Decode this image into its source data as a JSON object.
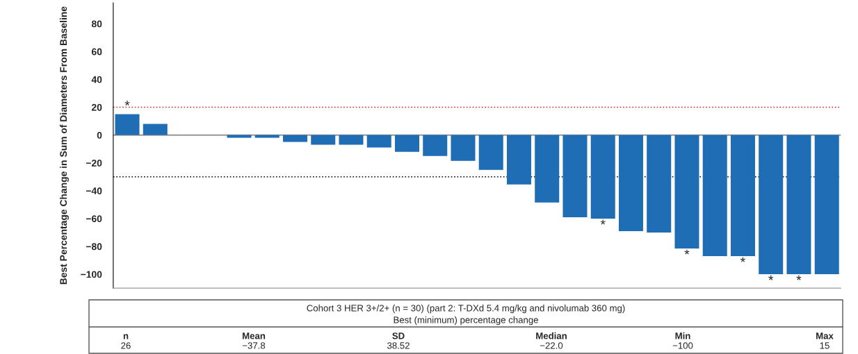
{
  "chart_data": {
    "type": "bar",
    "ylabel": "Best Percentage Change in Sum of Diameters From Baseline",
    "categories": [
      null,
      null,
      null,
      null,
      null,
      null,
      null,
      null,
      null,
      null,
      null,
      null,
      null,
      null,
      null,
      null,
      null,
      null,
      null,
      null,
      null,
      null,
      null,
      null,
      null,
      null
    ],
    "values": [
      15,
      8,
      null,
      null,
      -2,
      -2,
      -5,
      -7,
      -7,
      -9,
      -12,
      -15,
      -18.5,
      -25,
      -35.5,
      -48.5,
      -59,
      -60,
      -69,
      -70,
      -81.5,
      -87,
      -87,
      -100,
      -100,
      -100
    ],
    "value_labels": [
      "*",
      null,
      null,
      null,
      null,
      null,
      null,
      null,
      null,
      null,
      null,
      null,
      null,
      null,
      null,
      null,
      null,
      "*",
      null,
      null,
      "*",
      null,
      "*",
      "*",
      "*",
      null
    ],
    "color": "#1f6db5",
    "ylim": [
      -110,
      95
    ],
    "yticks": [
      {
        "value": -100,
        "label": "−100"
      },
      {
        "value": -80,
        "label": "−80"
      },
      {
        "value": -60,
        "label": "−60"
      },
      {
        "value": -40,
        "label": "−40"
      },
      {
        "value": -20,
        "label": "−20"
      },
      0,
      20,
      40,
      60,
      80
    ],
    "ref_lines": [
      {
        "axis": "y",
        "value": 20,
        "color": "#d62728",
        "line_style": "dotted"
      },
      {
        "axis": "y",
        "value": -30,
        "color": "#000000",
        "line_style": "dotted"
      },
      {
        "axis": "y",
        "value": 0,
        "color": "#888888",
        "line_style": "solid"
      }
    ],
    "grid": false,
    "annotations": [
      "Cohort 3 HER 3+/2+ (n = 30) (part 2: T-DXd 5.4 mg/kg and nivolumab 360 mg)",
      "Best (minimum) percentage change",
      "n",
      "Mean",
      "SD",
      "Median",
      "Min",
      "Max",
      "26",
      "−37.8",
      "38.52",
      "−22.0",
      "−100",
      "15"
    ]
  }
}
